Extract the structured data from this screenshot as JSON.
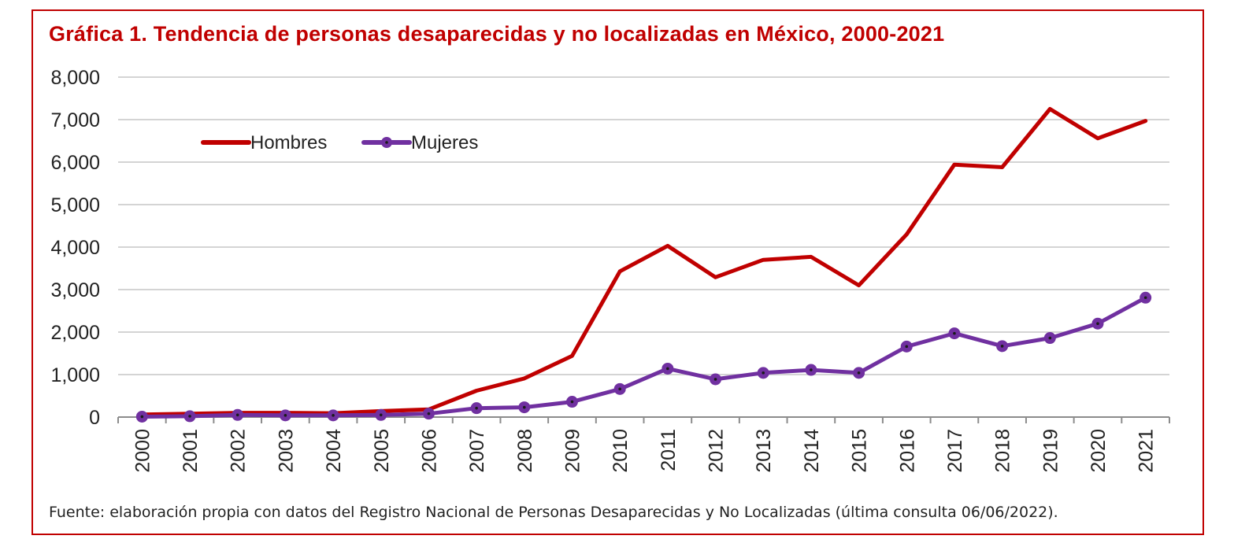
{
  "chart_data": {
    "type": "line",
    "title": "Gráfica 1. Tendencia de personas desaparecidas y no localizadas en México, 2000-2021",
    "source": "Fuente: elaboración propia con datos del Registro Nacional de Personas Desaparecidas y No Localizadas (última consulta 06/06/2022).",
    "x": [
      "2000",
      "2001",
      "2002",
      "2003",
      "2004",
      "2005",
      "2006",
      "2007",
      "2008",
      "2009",
      "2010",
      "2011",
      "2012",
      "2013",
      "2014",
      "2015",
      "2016",
      "2017",
      "2018",
      "2019",
      "2020",
      "2021"
    ],
    "ylim": [
      0,
      8000
    ],
    "yticks": [
      0,
      1000,
      2000,
      3000,
      4000,
      5000,
      6000,
      7000,
      8000
    ],
    "ytick_labels": [
      "0",
      "1,000",
      "2,000",
      "3,000",
      "4,000",
      "5,000",
      "6,000",
      "7,000",
      "8,000"
    ],
    "grid": true,
    "legend_position": "top-left",
    "series": [
      {
        "name": "Hombres",
        "color": "#c00000",
        "marker": false,
        "values": [
          60,
          80,
          100,
          100,
          90,
          140,
          180,
          620,
          910,
          1440,
          3430,
          4030,
          3290,
          3700,
          3770,
          3100,
          4300,
          5940,
          5880,
          7250,
          6560,
          6970
        ]
      },
      {
        "name": "Mujeres",
        "color": "#7030a0",
        "marker": true,
        "values": [
          10,
          20,
          50,
          40,
          40,
          50,
          80,
          210,
          230,
          360,
          660,
          1140,
          890,
          1040,
          1110,
          1040,
          1660,
          1970,
          1670,
          1860,
          2200,
          2810
        ]
      }
    ]
  }
}
